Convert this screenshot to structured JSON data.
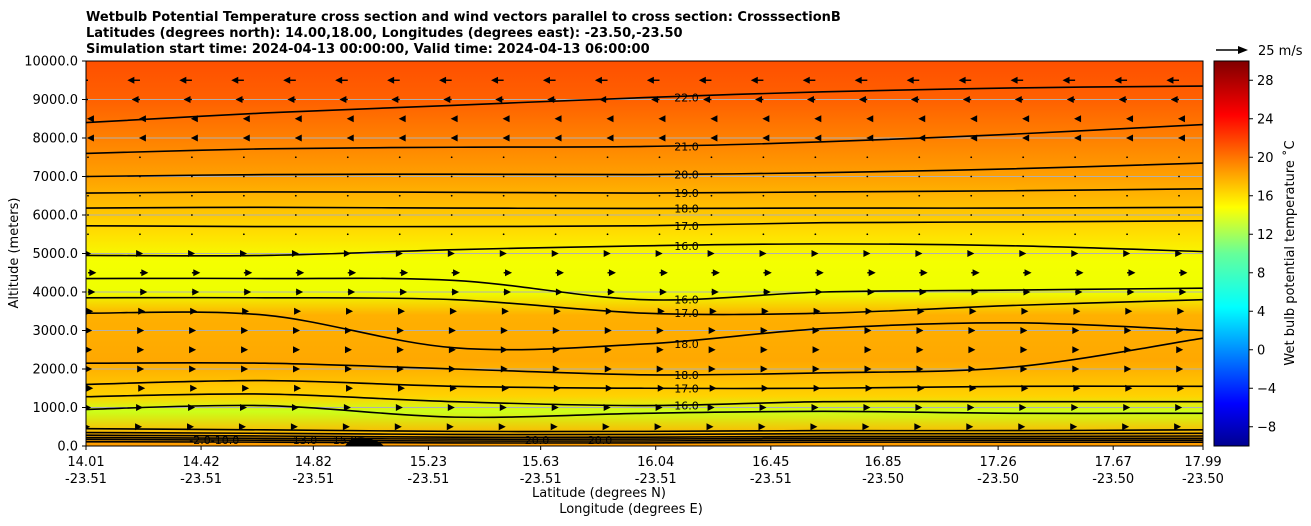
{
  "chart_data": {
    "type": "heatmap",
    "title_lines": [
      "Wetbulb Potential Temperature cross section and wind vectors parallel to cross section: CrosssectionB",
      "Latitudes (degrees north): 14.00,18.00, Longitudes (degrees east): -23.50,-23.50",
      "Simulation start time: 2024-04-13 00:00:00, Valid time: 2024-04-13 06:00:00"
    ],
    "xlabel_lat": "Latitude (degrees N)",
    "xlabel_lon": "Longitude (degrees E)",
    "ylabel": "Altitude (meters)",
    "x_ticks": [
      {
        "lat": "14.01",
        "lon": "-23.51"
      },
      {
        "lat": "14.42",
        "lon": "-23.51"
      },
      {
        "lat": "14.82",
        "lon": "-23.51"
      },
      {
        "lat": "15.23",
        "lon": "-23.51"
      },
      {
        "lat": "15.63",
        "lon": "-23.51"
      },
      {
        "lat": "16.04",
        "lon": "-23.51"
      },
      {
        "lat": "16.45",
        "lon": "-23.51"
      },
      {
        "lat": "16.85",
        "lon": "-23.50"
      },
      {
        "lat": "17.26",
        "lon": "-23.50"
      },
      {
        "lat": "17.67",
        "lon": "-23.50"
      },
      {
        "lat": "17.99",
        "lon": "-23.50"
      }
    ],
    "xlim": [
      14.01,
      17.99
    ],
    "y_ticks": [
      "0.0",
      "1000.0",
      "2000.0",
      "3000.0",
      "4000.0",
      "5000.0",
      "6000.0",
      "7000.0",
      "8000.0",
      "9000.0",
      "10000.0"
    ],
    "ylim": [
      0,
      10000
    ],
    "grid": "horizontal",
    "colorbar": {
      "label": "Wet bulb potential temperature $^\\circ$C",
      "label_display": "Wet bulb potential temperature ˚C",
      "range": [
        -10,
        30
      ],
      "ticks": [
        "−8",
        "−4",
        "0",
        "4",
        "8",
        "12",
        "16",
        "20",
        "24",
        "28"
      ],
      "colormap": "jet"
    },
    "quiver_key": {
      "label": "25 m/s",
      "speed": 25
    },
    "contours": [
      {
        "level": 22.0,
        "y": [
          8400,
          8650,
          8850,
          9050,
          9200,
          9300,
          9350
        ],
        "label": "22.0"
      },
      {
        "level": 21.0,
        "y": [
          7600,
          7720,
          7760,
          7780,
          7900,
          8100,
          8350
        ],
        "label": "21.0"
      },
      {
        "level": 20.0,
        "y": [
          7000,
          7050,
          7060,
          7050,
          7100,
          7200,
          7350
        ],
        "label": "20.0"
      },
      {
        "level": 19.0,
        "y": [
          6570,
          6600,
          6590,
          6570,
          6600,
          6630,
          6680
        ],
        "label": "19.0"
      },
      {
        "level": 18.0,
        "y": [
          6180,
          6200,
          6180,
          6170,
          6180,
          6180,
          6200
        ],
        "label": "18.0"
      },
      {
        "level": 17.0,
        "y": [
          5720,
          5700,
          5700,
          5720,
          5800,
          5820,
          5850
        ],
        "label": "17.0"
      },
      {
        "level": 16.0,
        "y": [
          4950,
          4950,
          5100,
          5200,
          5250,
          5200,
          5050
        ],
        "label": "16.0"
      },
      {
        "level": 16.0,
        "y": [
          4350,
          4350,
          4300,
          3800,
          4000,
          4050,
          4100
        ],
        "label": "16.0"
      },
      {
        "level": 17.0,
        "y": [
          3850,
          3850,
          3800,
          3450,
          3450,
          3650,
          3800
        ],
        "label": "17.0"
      },
      {
        "level": 18.0,
        "y": [
          3450,
          3400,
          2550,
          2650,
          3050,
          3200,
          3000
        ],
        "label": "18.0"
      },
      {
        "level": 18.0,
        "y": [
          2150,
          2150,
          2000,
          1850,
          1900,
          2050,
          2800
        ],
        "label": "18.0"
      },
      {
        "level": 17.0,
        "y": [
          1600,
          1700,
          1550,
          1500,
          1500,
          1550,
          1550
        ],
        "label": "17.0"
      },
      {
        "level": 16.0,
        "y": [
          1280,
          1350,
          1150,
          1050,
          1150,
          1150,
          1150
        ],
        "label": "16.0"
      },
      {
        "level": 15.0,
        "y": [
          950,
          1050,
          750,
          850,
          900,
          850,
          850
        ],
        "label": "15.0"
      },
      {
        "level": 15.0,
        "y": [
          450,
          420,
          380,
          380,
          400,
          400,
          420
        ],
        "label": "15.0"
      },
      {
        "level": 16.0,
        "y": [
          350,
          330,
          300,
          300,
          320,
          320,
          330
        ],
        "label": "16.0"
      },
      {
        "level": 17.0,
        "y": [
          280,
          260,
          230,
          230,
          250,
          250,
          260
        ],
        "label": "17.0"
      },
      {
        "level": 18.0,
        "y": [
          220,
          200,
          180,
          180,
          200,
          200,
          200
        ],
        "label": "18.0"
      },
      {
        "level": 19.0,
        "y": [
          170,
          150,
          130,
          130,
          150,
          150,
          150
        ],
        "label": "19.0"
      },
      {
        "level": 20.0,
        "y": [
          110,
          100,
          80,
          80,
          100,
          100,
          100
        ],
        "label": "20.0"
      }
    ],
    "contour_x_fractions": [
      0,
      0.16,
      0.33,
      0.5,
      0.66,
      0.83,
      1.0
    ],
    "bottom_labels": [
      "-2.0",
      "-10.0",
      "15.0",
      "13.0",
      "-20.0",
      "20.0"
    ],
    "wind_rows": [
      {
        "alt": 9500,
        "u": -12
      },
      {
        "alt": 9000,
        "u": -8
      },
      {
        "alt": 8500,
        "u": -1
      },
      {
        "alt": 8000,
        "u": -1
      },
      {
        "alt": 7500,
        "u": 0
      },
      {
        "alt": 7000,
        "u": 0
      },
      {
        "alt": 6500,
        "u": 0
      },
      {
        "alt": 6000,
        "u": 0
      },
      {
        "alt": 5500,
        "u": 0
      },
      {
        "alt": 5000,
        "u": 3
      },
      {
        "alt": 4500,
        "u": 8
      },
      {
        "alt": 4000,
        "u": 7
      },
      {
        "alt": 3500,
        "u": 5
      },
      {
        "alt": 3000,
        "u": 4
      },
      {
        "alt": 2500,
        "u": 4
      },
      {
        "alt": 2000,
        "u": 4
      },
      {
        "alt": 1500,
        "u": 5
      },
      {
        "alt": 1000,
        "u": 3
      },
      {
        "alt": 500,
        "u": 2
      }
    ]
  }
}
